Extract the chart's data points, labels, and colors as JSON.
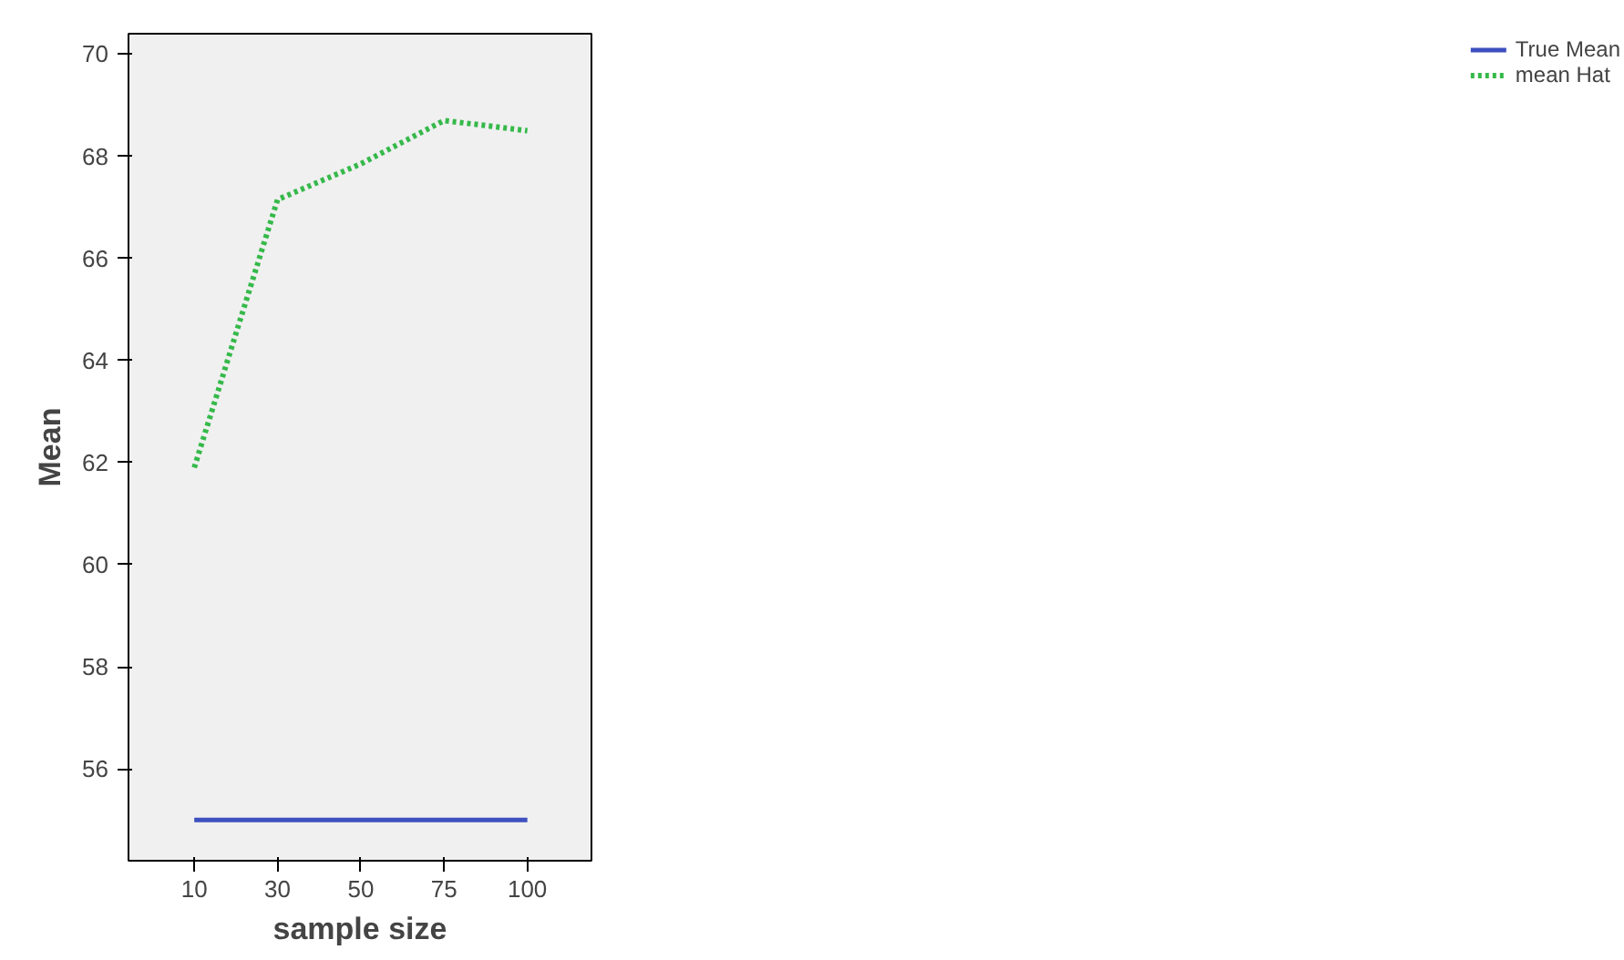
{
  "chart_data": {
    "type": "line",
    "xlabel": "sample size",
    "ylabel": "Mean",
    "categories": [
      "10",
      "30",
      "50",
      "75",
      "100"
    ],
    "series": [
      {
        "name": "True Mean",
        "color": "#3e4fbf",
        "line_style": "solid",
        "values": [
          55,
          55,
          55,
          55,
          55
        ]
      },
      {
        "name": "mean Hat",
        "color": "#35b94a",
        "line_style": "dotted",
        "values": [
          61.9,
          67.15,
          67.85,
          68.7,
          68.5
        ]
      }
    ],
    "ylim": [
      54.2,
      70.4
    ],
    "yticks": [
      56,
      58,
      60,
      62,
      64,
      66,
      68,
      70
    ],
    "grid": false,
    "legend": "top right",
    "marker": "none"
  }
}
